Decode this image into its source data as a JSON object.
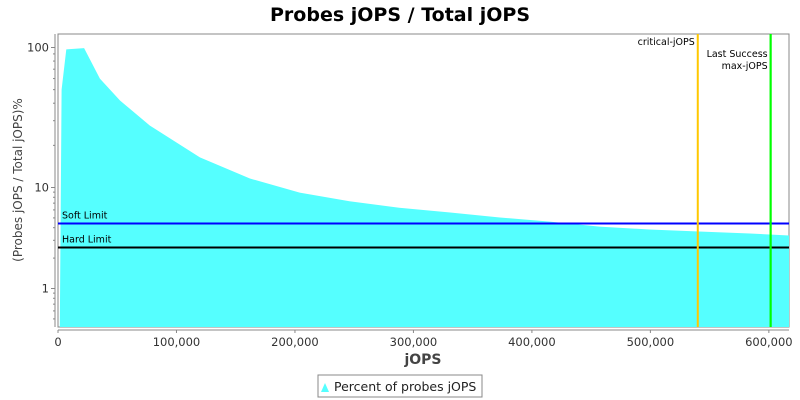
{
  "chart_data": {
    "type": "area",
    "title": "Probes jOPS / Total jOPS",
    "xlabel": "jOPS",
    "ylabel": "(Probes jOPS / Total jOPS)%",
    "xlim": [
      0,
      617000
    ],
    "ylim": [
      0.41,
      123
    ],
    "y_scale": "log",
    "x_ticks": [
      0,
      100000,
      200000,
      300000,
      400000,
      500000,
      600000
    ],
    "x_tick_labels": [
      "0",
      "100,000",
      "200,000",
      "300,000",
      "400,000",
      "500,000",
      "600,000"
    ],
    "y_ticks": [
      1,
      10,
      100
    ],
    "y_tick_labels": [
      "1",
      "10",
      "100"
    ],
    "grid": false,
    "legend_position": "bottom",
    "series": [
      {
        "name": "Percent of probes jOPS",
        "color": "#55FFFF",
        "x": [
          1500,
          3000,
          7000,
          22000,
          35400,
          52300,
          77600,
          119800,
          162000,
          204000,
          246000,
          288000,
          331000,
          373000,
          415000,
          457000,
          499000,
          541000,
          584000,
          617000
        ],
        "y": [
          0.41,
          50,
          97,
          99,
          60,
          41.8,
          27.7,
          16.4,
          11.6,
          8.9,
          7.3,
          6.3,
          5.65,
          5.05,
          4.6,
          4.1,
          3.84,
          3.67,
          3.5,
          3.35
        ]
      }
    ],
    "horizontal_lines": [
      {
        "label": "Soft Limit",
        "value": 4.4,
        "color": "#0000FF"
      },
      {
        "label": "Hard Limit",
        "value": 2.55,
        "color": "#000000"
      }
    ],
    "vertical_lines": [
      {
        "label": "critical-jOPS",
        "value": 540000,
        "color": "#FFC800"
      },
      {
        "label": "Last Success",
        "value": 601500,
        "color": "#00FF00"
      },
      {
        "label": "max-jOPS",
        "value": 601500,
        "color": "#00FF00"
      }
    ]
  }
}
